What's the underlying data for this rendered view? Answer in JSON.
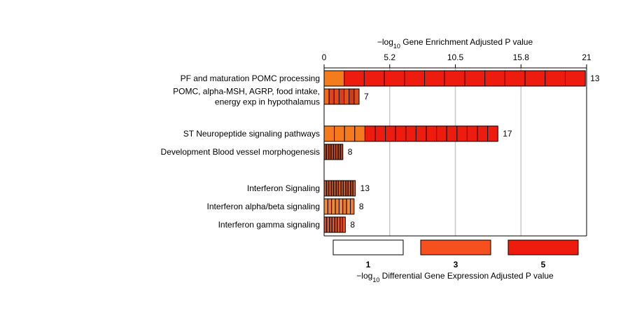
{
  "chart_data": {
    "type": "bar",
    "orientation": "horizontal",
    "x_axis": {
      "label_prefix": "−log",
      "label_sub": "10",
      "label_rest": " Gene Enrichment Adjusted P value",
      "position": "top",
      "range": [
        0,
        21
      ],
      "ticks": [
        {
          "value": 0,
          "label": "0"
        },
        {
          "value": 5.25,
          "label": "5.2"
        },
        {
          "value": 10.5,
          "label": "10.5"
        },
        {
          "value": 15.75,
          "label": "15.8"
        },
        {
          "value": 21,
          "label": "21"
        }
      ],
      "grid": true
    },
    "categories": [
      {
        "label_lines": [
          "PF and maturation POMC processing"
        ],
        "value": 20.9,
        "count": 13
      },
      {
        "label_lines": [
          "POMC, alpha-MSH, AGRP, food intake,",
          "energy exp in hypothalamus"
        ],
        "value": 2.8,
        "count": 7
      },
      {
        "label_lines": [
          "ST Neuropeptide signaling pathways"
        ],
        "value": 13.9,
        "count": 17
      },
      {
        "label_lines": [
          "Development Blood vessel morphogenesis"
        ],
        "value": 1.5,
        "count": 8
      },
      {
        "label_lines": [
          "Interferon Signaling"
        ],
        "value": 2.5,
        "count": 13
      },
      {
        "label_lines": [
          "Interferon alpha/beta signaling"
        ],
        "value": 2.4,
        "count": 8
      },
      {
        "label_lines": [
          "Interferon gamma signaling"
        ],
        "value": 1.7,
        "count": 8
      }
    ],
    "gene_colors": [
      [
        "#f47c1c",
        "#ee1c0e",
        "#ee1c0e",
        "#ee1c0e",
        "#ee1c0e",
        "#ee1c0e",
        "#ee1c0e",
        "#ee1c0e",
        "#ee1c0e",
        "#ee1c0e",
        "#ee1c0e",
        "#ee1c0e",
        "#ee1c0e"
      ],
      [
        "#f26a1a",
        "#e8401a",
        "#e34a1c",
        "#d8401a",
        "#e8501c",
        "#cc3d1a",
        "#e04a1c"
      ],
      [
        "#f57a1e",
        "#f57a1e",
        "#f57a1e",
        "#f57a1e",
        "#ee1c0e",
        "#ee1c0e",
        "#ee1c0e",
        "#ee1c0e",
        "#ee1c0e",
        "#ee1c0e",
        "#ee1c0e",
        "#ee1c0e",
        "#ee1c0e",
        "#ee1c0e",
        "#ee1c0e",
        "#ee1c0e",
        "#ee1c0e"
      ],
      [
        "#b0401a",
        "#c04a1c",
        "#a83c18",
        "#c24a1c",
        "#b4421a",
        "#c04a1c",
        "#a83c18",
        "#b4421a"
      ],
      [
        "#c85a26",
        "#b84a20",
        "#d0602a",
        "#b84a20",
        "#c85a26",
        "#b04420",
        "#d0602a",
        "#b84a20",
        "#c85a26",
        "#b04420",
        "#c85a26",
        "#b84a20",
        "#d0602a"
      ],
      [
        "#f08a3a",
        "#ee7c30",
        "#f08a3a",
        "#ee7c30",
        "#f08a3a",
        "#ee7c30",
        "#f08a3a",
        "#ee7c30"
      ],
      [
        "#d84a20",
        "#e85a2a",
        "#cc4420",
        "#e85a2a",
        "#d84a20",
        "#e85a2a",
        "#cc4420",
        "#e85a2a"
      ]
    ],
    "legend": {
      "label_prefix": "−log",
      "label_sub": "10",
      "label_rest": " Differential Gene Expression Adjusted P value",
      "placement": "bottom",
      "items": [
        {
          "label": "1",
          "color": "#ffffff"
        },
        {
          "label": "3",
          "color": "#f5501e"
        },
        {
          "label": "5",
          "color": "#ee1c0e"
        }
      ]
    }
  }
}
